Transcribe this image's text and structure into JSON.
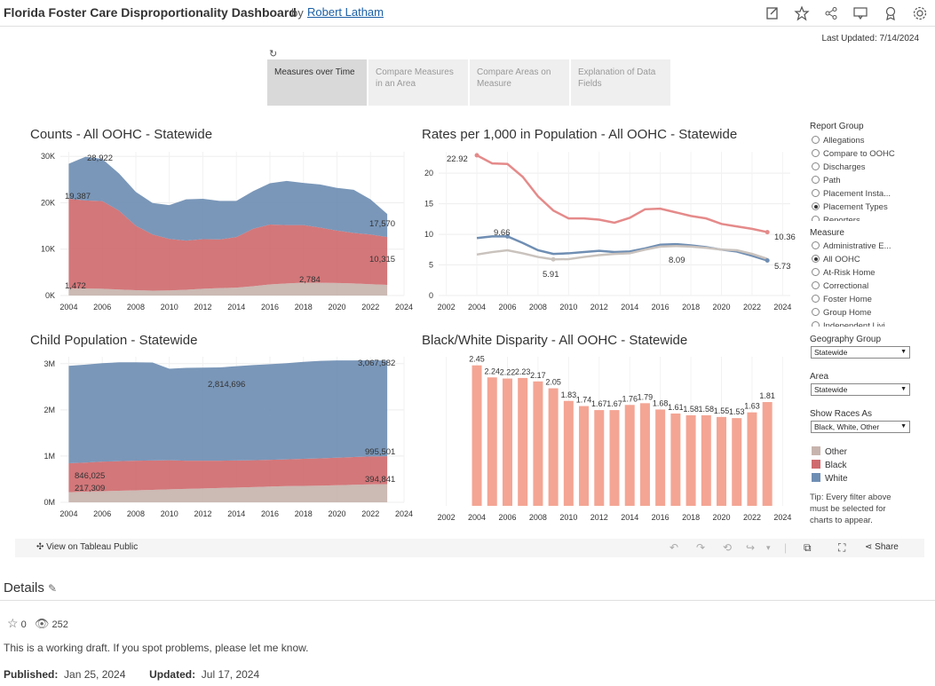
{
  "header": {
    "title": "Florida Foster Care Disproportionality Dashboard",
    "by": "by",
    "author": "Robert Latham",
    "icons": [
      "edit-icon",
      "star-icon",
      "share-icon",
      "comment-icon",
      "badge-icon",
      "settings-icon"
    ]
  },
  "last_updated": "Last Updated: 7/14/2024",
  "refresh_icon": "↻",
  "tabs": [
    {
      "label": "Measures over Time",
      "active": true
    },
    {
      "label": "Compare Measures in an Area",
      "active": false
    },
    {
      "label": "Compare Areas on Measure",
      "active": false
    },
    {
      "label": "Explanation of Data Fields",
      "active": false
    }
  ],
  "colors": {
    "white": "#6f8eb3",
    "black": "#cf6b6f",
    "other": "#c8b4ae",
    "bar": "#f4a594",
    "line_white": "#6f8eb3",
    "line_black": "#e58a8a",
    "line_other": "#c9c2bd"
  },
  "sidebar": {
    "report_group_label": "Report Group",
    "report_group": [
      {
        "label": "Allegations",
        "on": false
      },
      {
        "label": "Compare to OOHC",
        "on": false
      },
      {
        "label": "Discharges",
        "on": false
      },
      {
        "label": "Path",
        "on": false
      },
      {
        "label": "Placement Insta...",
        "on": false
      },
      {
        "label": "Placement Types",
        "on": true
      },
      {
        "label": "Reporters",
        "on": false
      }
    ],
    "measure_label": "Measure",
    "measure": [
      {
        "label": "Administrative E...",
        "on": false
      },
      {
        "label": "All OOHC",
        "on": true
      },
      {
        "label": "At-Risk Home",
        "on": false
      },
      {
        "label": "Correctional",
        "on": false
      },
      {
        "label": "Foster Home",
        "on": false
      },
      {
        "label": "Group Home",
        "on": false
      },
      {
        "label": "Independent Livi...",
        "on": false
      }
    ],
    "geography_label": "Geography Group",
    "geography_value": "Statewide",
    "area_label": "Area",
    "area_value": "Statewide",
    "races_label": "Show Races As",
    "races_value": "Black, White, Other",
    "legend": [
      {
        "label": "Other"
      },
      {
        "label": "Black"
      },
      {
        "label": "White"
      }
    ],
    "tip": "Tip: Every filter above must be selected for charts to appear."
  },
  "chart_data": [
    {
      "type": "area",
      "title": "Counts - All OOHC - Statewide",
      "x_ticks": [
        "2004",
        "2006",
        "2008",
        "2010",
        "2012",
        "2014",
        "2016",
        "2018",
        "2020",
        "2022",
        "2024"
      ],
      "y_ticks": [
        "0K",
        "10K",
        "20K",
        "30K"
      ],
      "ylim": [
        0,
        31000
      ],
      "x": [
        2004,
        2005,
        2006,
        2007,
        2008,
        2009,
        2010,
        2011,
        2012,
        2013,
        2014,
        2015,
        2016,
        2017,
        2018,
        2019,
        2020,
        2021,
        2022,
        2023
      ],
      "series": [
        {
          "name": "Other",
          "values": [
            1472,
            1500,
            1450,
            1300,
            1150,
            1050,
            1100,
            1250,
            1450,
            1600,
            1700,
            2000,
            2400,
            2600,
            2784,
            2750,
            2700,
            2600,
            2450,
            2300
          ]
        },
        {
          "name": "Black",
          "values": [
            19387,
            19000,
            18900,
            17000,
            13900,
            12100,
            11100,
            10600,
            10700,
            10500,
            10900,
            12400,
            12900,
            12600,
            12400,
            11900,
            11300,
            10900,
            10700,
            10315
          ]
        },
        {
          "name": "White",
          "values": [
            7563,
            9422,
            9100,
            8000,
            7300,
            6800,
            7300,
            8900,
            8700,
            8300,
            7800,
            8100,
            8900,
            9500,
            9100,
            9300,
            9200,
            9300,
            7600,
            4955
          ]
        }
      ],
      "labels": [
        "28,922",
        "19,387",
        "1,472",
        "17,570",
        "10,315",
        "2,784"
      ]
    },
    {
      "type": "line",
      "title": "Rates per 1,000 in Population - All OOHC - Statewide",
      "x_ticks": [
        "2002",
        "2004",
        "2006",
        "2008",
        "2010",
        "2012",
        "2014",
        "2016",
        "2018",
        "2020",
        "2022",
        "2024"
      ],
      "y_ticks": [
        "0",
        "5",
        "10",
        "15",
        "20"
      ],
      "ylim": [
        0,
        23.5
      ],
      "x": [
        2004,
        2005,
        2006,
        2007,
        2008,
        2009,
        2010,
        2011,
        2012,
        2013,
        2014,
        2015,
        2016,
        2017,
        2018,
        2019,
        2020,
        2021,
        2022,
        2023
      ],
      "series": [
        {
          "name": "Black",
          "values": [
            22.92,
            21.6,
            21.5,
            19.4,
            16.2,
            13.9,
            12.6,
            12.6,
            12.4,
            11.9,
            12.7,
            14.1,
            14.2,
            13.6,
            13.0,
            12.6,
            11.7,
            11.3,
            10.9,
            10.36
          ]
        },
        {
          "name": "White",
          "values": [
            9.4,
            9.66,
            9.66,
            8.6,
            7.4,
            6.8,
            6.9,
            7.1,
            7.3,
            7.1,
            7.2,
            7.7,
            8.3,
            8.4,
            8.2,
            7.9,
            7.5,
            7.2,
            6.5,
            5.73
          ]
        },
        {
          "name": "Other",
          "values": [
            6.7,
            7.1,
            7.4,
            6.9,
            6.3,
            5.91,
            5.95,
            6.3,
            6.6,
            6.8,
            6.9,
            7.5,
            8.0,
            8.09,
            8.0,
            7.8,
            7.5,
            7.4,
            6.8,
            6.0
          ]
        }
      ],
      "labels": [
        "22.92",
        "9.66",
        "5.91",
        "8.09",
        "10.36",
        "5.73"
      ]
    },
    {
      "type": "area",
      "title": "Child Population - Statewide",
      "x_ticks": [
        "2004",
        "2006",
        "2008",
        "2010",
        "2012",
        "2014",
        "2016",
        "2018",
        "2020",
        "2022",
        "2024"
      ],
      "y_ticks": [
        "0M",
        "1M",
        "2M",
        "3M"
      ],
      "ylim": [
        0,
        3150000
      ],
      "x": [
        2004,
        2005,
        2006,
        2007,
        2008,
        2009,
        2010,
        2011,
        2012,
        2013,
        2014,
        2015,
        2016,
        2017,
        2018,
        2019,
        2020,
        2021,
        2022,
        2023
      ],
      "series": [
        {
          "name": "Other",
          "values": [
            217309,
            230000,
            240000,
            250000,
            260000,
            270000,
            280000,
            290000,
            300000,
            310000,
            320000,
            330000,
            340000,
            350000,
            355000,
            360000,
            370000,
            380000,
            390000,
            394841
          ]
        },
        {
          "name": "Black",
          "values": [
            628716,
            630000,
            640000,
            640000,
            640000,
            635000,
            630000,
            610000,
            600000,
            590000,
            585000,
            580000,
            580000,
            580000,
            585000,
            590000,
            595000,
            600000,
            602000,
            600660
          ]
        },
        {
          "name": "White",
          "values": [
            2106000,
            2120000,
            2130000,
            2140000,
            2130000,
            2120000,
            1980000,
            2010000,
            2015000,
            2020000,
            2040000,
            2060000,
            2070000,
            2080000,
            2100000,
            2110000,
            2105000,
            2090000,
            2080000,
            2072081
          ]
        }
      ],
      "labels": [
        "3,067,582",
        "2,814,696",
        "995,501",
        "846,025",
        "217,309",
        "394,841"
      ]
    },
    {
      "type": "bar",
      "title": "Black/White Disparity - All OOHC - Statewide",
      "x_ticks": [
        "2002",
        "2004",
        "2006",
        "2008",
        "2010",
        "2012",
        "2014",
        "2016",
        "2018",
        "2020",
        "2022",
        "2024"
      ],
      "categories": [
        "2004",
        "2005",
        "2006",
        "2007",
        "2008",
        "2009",
        "2010",
        "2011",
        "2012",
        "2013",
        "2014",
        "2015",
        "2016",
        "2017",
        "2018",
        "2019",
        "2020",
        "2021",
        "2022",
        "2023"
      ],
      "values": [
        2.45,
        2.24,
        2.22,
        2.23,
        2.17,
        2.05,
        1.83,
        1.74,
        1.67,
        1.67,
        1.76,
        1.79,
        1.68,
        1.61,
        1.58,
        1.58,
        1.55,
        1.53,
        1.63,
        1.81
      ],
      "value_labels": [
        "2.45",
        "2.24",
        "2.22",
        "2.23",
        "2.17",
        "2.05",
        "1.83",
        "1.74",
        "1.67",
        "1.67",
        "1.76",
        "1.79",
        "1.68",
        "1.61",
        "1.58",
        "1.58",
        "1.55",
        "1.53",
        "1.63",
        "1.81"
      ],
      "ylim": [
        0,
        2.6
      ]
    }
  ],
  "toolbar": {
    "view_on": "View on Tableau Public",
    "share": "Share"
  },
  "details": {
    "title": "Details",
    "stars": "0",
    "views": "252",
    "description": "This is a working draft. If you spot problems, please let me know.",
    "published_label": "Published:",
    "published": "Jan 25, 2024",
    "updated_label": "Updated:",
    "updated": "Jul 17, 2024"
  }
}
